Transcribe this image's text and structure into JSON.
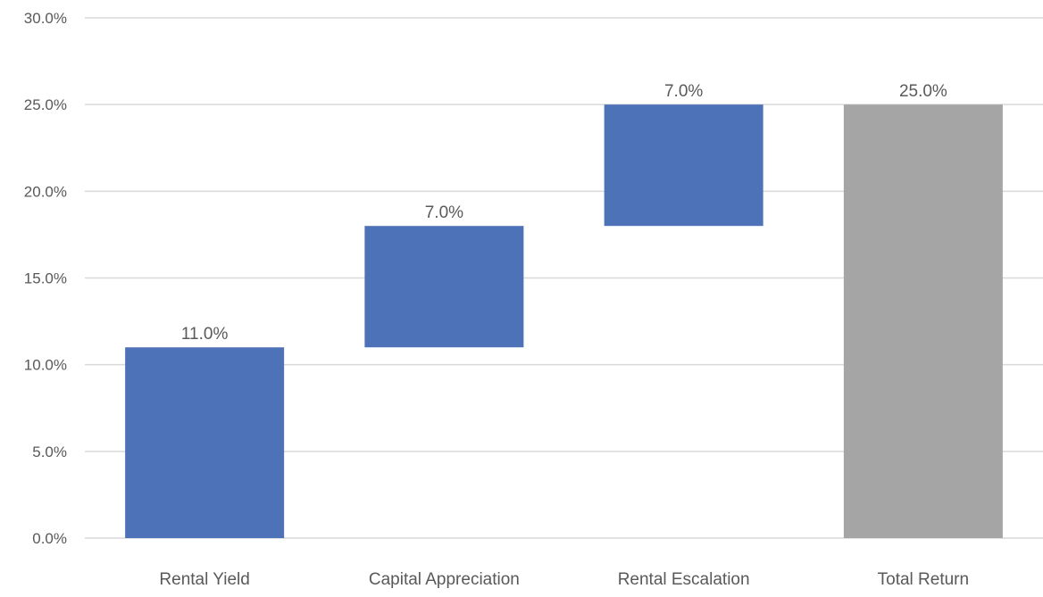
{
  "chart_data": {
    "type": "bar",
    "subtype": "waterfall",
    "categories": [
      "Rental Yield",
      "Capital Appreciation",
      "Rental Escalation",
      "Total Return"
    ],
    "values": [
      11.0,
      7.0,
      7.0,
      25.0
    ],
    "bases": [
      0.0,
      11.0,
      18.0,
      0.0
    ],
    "data_labels": [
      "11.0%",
      "7.0%",
      "7.0%",
      "25.0%"
    ],
    "bar_kinds": [
      "increase",
      "increase",
      "increase",
      "total"
    ],
    "ylim": [
      0,
      30
    ],
    "yticks": [
      0,
      5,
      10,
      15,
      20,
      25,
      30
    ],
    "ytick_labels": [
      "0.0%",
      "5.0%",
      "10.0%",
      "15.0%",
      "20.0%",
      "25.0%",
      "30.0%"
    ],
    "title": "",
    "xlabel": "",
    "ylabel": "",
    "grid": true,
    "legend": "none",
    "colors": {
      "increase": "#4e72b8",
      "total": "#a5a5a5",
      "gridline": "#d9d9d9",
      "axis_line": "#d9d9d9",
      "text": "#595959"
    }
  }
}
